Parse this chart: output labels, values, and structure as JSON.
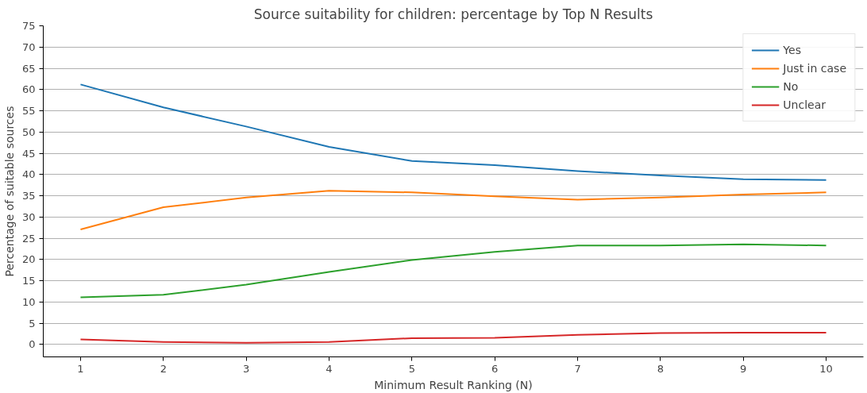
{
  "chart_data": {
    "type": "line",
    "title": "Source suitability for children: percentage by Top N Results",
    "xlabel": "Minimum Result Ranking (N)",
    "ylabel": "Percentage of suitable sources",
    "x": [
      1,
      2,
      3,
      4,
      5,
      6,
      7,
      8,
      9,
      10
    ],
    "series": [
      {
        "name": "Yes",
        "color": "#1f77b4",
        "values": [
          61.2,
          55.8,
          51.3,
          46.5,
          43.2,
          42.2,
          40.8,
          39.8,
          38.9,
          38.7
        ]
      },
      {
        "name": "Just in case",
        "color": "#ff7f0e",
        "values": [
          27.1,
          32.3,
          34.6,
          36.2,
          35.8,
          34.9,
          34.1,
          34.6,
          35.3,
          35.8
        ]
      },
      {
        "name": "No",
        "color": "#2ca02c",
        "values": [
          11.1,
          11.7,
          14.1,
          17.1,
          19.9,
          21.8,
          23.3,
          23.3,
          23.6,
          23.3
        ]
      },
      {
        "name": "Unclear",
        "color": "#d62728",
        "values": [
          1.2,
          0.6,
          0.4,
          0.6,
          1.5,
          1.6,
          2.3,
          2.7,
          2.8,
          2.8
        ]
      }
    ],
    "xlim": [
      0.55,
      10.45
    ],
    "xticks": [
      1,
      2,
      3,
      4,
      5,
      6,
      7,
      8,
      9,
      10
    ],
    "ylim": [
      -2.9,
      75
    ],
    "yticks": [
      0,
      5,
      10,
      15,
      20,
      25,
      30,
      35,
      40,
      45,
      50,
      55,
      60,
      65,
      70,
      75
    ],
    "grid": "y",
    "legend": "top right",
    "marker": "none",
    "line_style": "solid"
  }
}
